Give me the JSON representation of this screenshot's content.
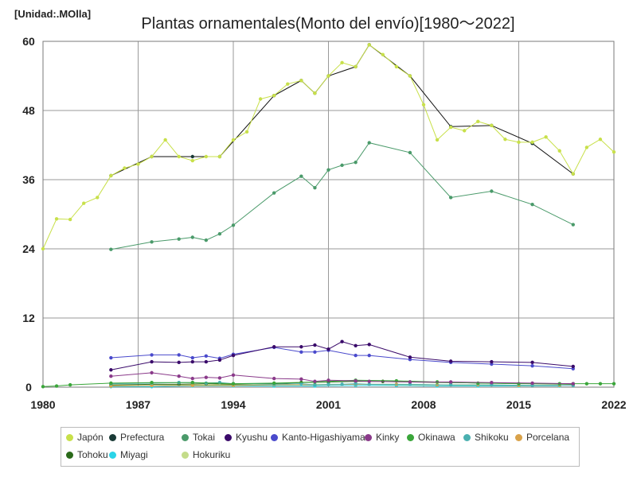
{
  "unit_label": "[Unidad:.MOlla]",
  "chart_data": {
    "type": "line",
    "title": "Plantas ornamentales(Monto del envío)[1980～2022]",
    "xlabel": "",
    "ylabel": "",
    "xlim": [
      1980,
      2022
    ],
    "ylim": [
      0,
      60
    ],
    "x_ticks": [
      1980,
      1987,
      1994,
      2001,
      2008,
      2015,
      2022
    ],
    "y_ticks": [
      0,
      12,
      24,
      36,
      48,
      60
    ],
    "grid": true,
    "legend_position": "bottom",
    "series": [
      {
        "name": "Japón",
        "color": "#c8e04a",
        "line": "#c8e04a",
        "x": [
          1980,
          1981,
          1982,
          1983,
          1984,
          1985,
          1986,
          1987,
          1988,
          1989,
          1990,
          1991,
          1992,
          1993,
          1994,
          1995,
          1996,
          1997,
          1998,
          1999,
          2000,
          2001,
          2002,
          2003,
          2004,
          2005,
          2006,
          2007,
          2008,
          2009,
          2010,
          2011,
          2012,
          2013,
          2014,
          2015,
          2016,
          2017,
          2018,
          2019,
          2020,
          2021,
          2022
        ],
        "y": [
          24.0,
          29.2,
          29.1,
          31.9,
          32.9,
          36.7,
          38.0,
          38.7,
          40.0,
          42.9,
          40.0,
          39.3,
          40.0,
          40.0,
          42.9,
          44.3,
          50.0,
          50.6,
          52.6,
          53.2,
          51.0,
          54.0,
          56.3,
          55.6,
          59.4,
          57.7,
          55.6,
          54.0,
          49.0,
          42.9,
          45.1,
          44.5,
          46.1,
          45.4,
          43.0,
          42.5,
          42.5,
          43.4,
          41.0,
          37.0,
          41.6,
          43.0,
          40.8
        ]
      },
      {
        "name": "Prefectura",
        "color": "#1a3a36",
        "line": "#111111",
        "x": [
          1985,
          1988,
          1991,
          1993,
          1997,
          1999,
          2000,
          2001,
          2003,
          2004,
          2007,
          2010,
          2013,
          2016,
          2019
        ],
        "y": [
          36.7,
          40.0,
          40.0,
          40.0,
          50.6,
          53.2,
          51.0,
          54.0,
          55.6,
          59.4,
          54.0,
          45.2,
          45.4,
          42.3,
          37.0
        ]
      },
      {
        "name": "Tokai",
        "color": "#4a9a6a",
        "line": "#4a9a6a",
        "x": [
          1985,
          1988,
          1990,
          1991,
          1992,
          1993,
          1994,
          1997,
          1999,
          2000,
          2001,
          2002,
          2003,
          2004,
          2007,
          2010,
          2013,
          2016,
          2019
        ],
        "y": [
          23.9,
          25.2,
          25.7,
          26.0,
          25.5,
          26.6,
          28.1,
          33.7,
          36.6,
          34.6,
          37.7,
          38.5,
          39.0,
          42.4,
          40.7,
          32.9,
          34.0,
          31.7,
          28.2
        ]
      },
      {
        "name": "Kyushu",
        "color": "#3a0a6a",
        "line": "#3a0a6a",
        "x": [
          1985,
          1988,
          1990,
          1991,
          1992,
          1993,
          1994,
          1997,
          1999,
          2000,
          2001,
          2002,
          2003,
          2004,
          2007,
          2010,
          2013,
          2016,
          2019
        ],
        "y": [
          3.0,
          4.4,
          4.3,
          4.4,
          4.4,
          4.7,
          5.5,
          7.0,
          7.0,
          7.3,
          6.6,
          7.9,
          7.2,
          7.4,
          5.2,
          4.5,
          4.4,
          4.3,
          3.6
        ]
      },
      {
        "name": "Kanto-Higashiyama",
        "color": "#4a4acc",
        "line": "#4a4acc",
        "x": [
          1985,
          1988,
          1990,
          1991,
          1992,
          1993,
          1994,
          1997,
          1999,
          2000,
          2001,
          2003,
          2004,
          2007,
          2010,
          2013,
          2016,
          2019
        ],
        "y": [
          5.1,
          5.6,
          5.6,
          5.1,
          5.4,
          5.0,
          5.7,
          6.9,
          6.1,
          6.1,
          6.4,
          5.5,
          5.5,
          4.8,
          4.3,
          4.0,
          3.7,
          3.2
        ]
      },
      {
        "name": "Kinky",
        "color": "#8a3a8a",
        "line": "#8a3a8a",
        "x": [
          1985,
          1988,
          1990,
          1991,
          1992,
          1993,
          1994,
          1997,
          1999,
          2000,
          2001,
          2003,
          2004,
          2007,
          2010,
          2013,
          2016,
          2019
        ],
        "y": [
          1.9,
          2.5,
          1.9,
          1.5,
          1.7,
          1.6,
          2.1,
          1.5,
          1.4,
          1.0,
          1.2,
          1.1,
          1.0,
          0.9,
          0.9,
          0.8,
          0.7,
          0.6
        ]
      },
      {
        "name": "Okinawa",
        "color": "#3aa63a",
        "line": "#3aa63a",
        "x": [
          1980,
          1981,
          1982,
          1985,
          1988,
          1991,
          1994,
          1997,
          2000,
          2003,
          2006,
          2009,
          2012,
          2015,
          2018,
          2019,
          2020,
          2021,
          2022
        ],
        "y": [
          0.1,
          0.2,
          0.4,
          0.7,
          0.8,
          0.8,
          0.6,
          0.7,
          0.9,
          1.2,
          1.1,
          0.9,
          0.7,
          0.6,
          0.6,
          0.6,
          0.6,
          0.6,
          0.6
        ]
      },
      {
        "name": "Shikoku",
        "color": "#4ab0b0",
        "line": "#4ab0b0",
        "x": [
          1985,
          1988,
          1990,
          1991,
          1992,
          1993,
          1994,
          1997,
          1999,
          2000,
          2001,
          2002,
          2003,
          2004,
          2007,
          2010,
          2013,
          2016,
          2019
        ],
        "y": [
          0.6,
          0.7,
          0.8,
          0.8,
          0.7,
          0.8,
          0.6,
          0.5,
          0.6,
          0.4,
          0.5,
          0.5,
          0.6,
          0.5,
          0.5,
          0.4,
          0.4,
          0.3,
          0.3
        ]
      },
      {
        "name": "Porcelana",
        "color": "#d9a24a",
        "line": "#d9a24a",
        "x": [
          1985,
          1988,
          1991,
          1994,
          1997,
          2000,
          2003,
          2006,
          2009,
          2012,
          2015,
          2018
        ],
        "y": [
          0.2,
          0.3,
          0.3,
          0.3,
          0.4,
          0.4,
          0.5,
          0.5,
          0.4,
          0.4,
          0.3,
          0.3
        ]
      },
      {
        "name": "Tohoku",
        "color": "#2a6a1a",
        "line": "#2a6a1a",
        "x": [
          1985,
          1988,
          1990,
          1992,
          1994,
          1997,
          1999,
          2001,
          2003,
          2005,
          2007,
          2010,
          2013,
          2016,
          2019
        ],
        "y": [
          0.4,
          0.5,
          0.5,
          0.6,
          0.5,
          0.6,
          0.8,
          0.9,
          1.0,
          1.0,
          0.9,
          0.8,
          0.7,
          0.6,
          0.5
        ]
      },
      {
        "name": "Miyagi",
        "color": "#2ad4e8",
        "line": "#2ad4e8",
        "x": [
          1985,
          1988,
          1991,
          1994,
          1997,
          2000,
          2003,
          2006,
          2009,
          2012,
          2015,
          2018
        ],
        "y": [
          0.1,
          0.1,
          0.2,
          0.2,
          0.2,
          0.2,
          0.3,
          0.3,
          0.2,
          0.2,
          0.2,
          0.2
        ]
      },
      {
        "name": "Hokuriku",
        "color": "#c4dc8a",
        "line": "#c4dc8a",
        "x": [
          1985,
          1988,
          1991,
          1994,
          1997,
          2000,
          2003,
          2006,
          2009,
          2012,
          2015,
          2018
        ],
        "y": [
          0.3,
          0.3,
          0.4,
          0.4,
          0.4,
          0.5,
          0.5,
          0.4,
          0.4,
          0.3,
          0.3,
          0.3
        ]
      }
    ]
  }
}
